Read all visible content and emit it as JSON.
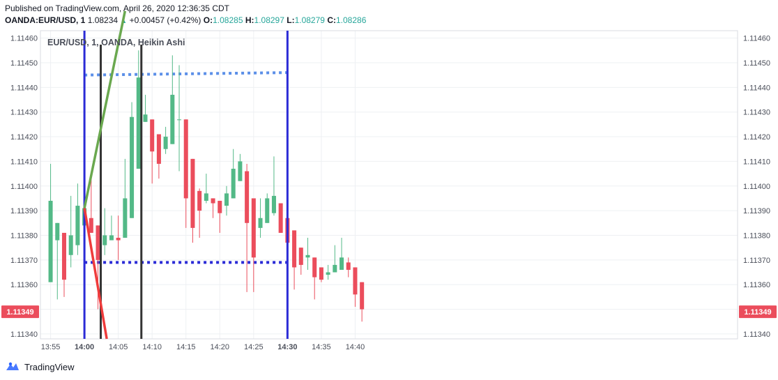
{
  "header": {
    "published": "Published on TradingView.com, April 26, 2020 12:36:35 CDT",
    "symbol": "OANDA:EUR/USD, 1",
    "last": "1.08234",
    "change": "+0.00457 (+0.42%)",
    "o_label": "O:",
    "o_value": "1.08285",
    "h_label": "H:",
    "h_value": "1.08297",
    "l_label": "L:",
    "l_value": "1.08279",
    "c_label": "C:",
    "c_value": "1.08286"
  },
  "chart_title": "EUR/USD, 1, OANDA, Heikin Ashi",
  "footer": {
    "brand": "TradingView",
    "logo_icon": "tradingview-logo-icon"
  },
  "colors": {
    "up": "#53b987",
    "down": "#eb4d5c",
    "grid": "#eef0f3",
    "vline": "#2b2bd6",
    "price_label": "#eb4d5c"
  },
  "chart_data": {
    "type": "candlestick",
    "style": "Heikin Ashi",
    "y_ticks": [
      "1.11340",
      "1.11350",
      "1.11360",
      "1.11370",
      "1.11380",
      "1.11390",
      "1.11400",
      "1.11410",
      "1.11420",
      "1.11430",
      "1.11440",
      "1.11450",
      "1.11460"
    ],
    "x_ticks": [
      "13:55",
      "14:00",
      "14:05",
      "14:10",
      "14:15",
      "14:20",
      "14:25",
      "14:30",
      "14:35",
      "14:40"
    ],
    "ylim": [
      1.11338,
      1.11463
    ],
    "x_range_minutes": [
      -1.5,
      101.5
    ],
    "current_price": "1.11349",
    "candles": [
      {
        "t": 0,
        "o": 1.11361,
        "c": 1.11394,
        "h": 1.11409,
        "l": 1.11361
      },
      {
        "t": 1,
        "o": 1.11378,
        "c": 1.11385,
        "h": 1.11385,
        "l": 1.11354
      },
      {
        "t": 2,
        "o": 1.11381,
        "c": 1.11362,
        "h": 1.11381,
        "l": 1.11355
      },
      {
        "t": 3,
        "o": 1.11372,
        "c": 1.1138,
        "h": 1.11396,
        "l": 1.11367
      },
      {
        "t": 4,
        "o": 1.11376,
        "c": 1.11392,
        "h": 1.11401,
        "l": 1.11372
      },
      {
        "t": 5,
        "o": 1.11384,
        "c": 1.11391,
        "h": 1.11415,
        "l": 1.11384
      },
      {
        "t": 6,
        "o": 1.11387,
        "c": 1.11381,
        "h": 1.11404,
        "l": 1.11381
      },
      {
        "t": 7,
        "o": 1.11384,
        "c": 1.1137,
        "h": 1.11384,
        "l": 1.1135
      },
      {
        "t": 8,
        "o": 1.11376,
        "c": 1.1138,
        "h": 1.11391,
        "l": 1.11372
      },
      {
        "t": 9,
        "o": 1.11378,
        "c": 1.1138,
        "h": 1.11388,
        "l": 1.11378
      },
      {
        "t": 10,
        "o": 1.11379,
        "c": 1.11378,
        "h": 1.11388,
        "l": 1.1137
      },
      {
        "t": 11,
        "o": 1.11379,
        "c": 1.11395,
        "h": 1.11411,
        "l": 1.11379
      },
      {
        "t": 12,
        "o": 1.11387,
        "c": 1.11428,
        "h": 1.11434,
        "l": 1.11387
      },
      {
        "t": 13,
        "o": 1.11407,
        "c": 1.11444,
        "h": 1.11455,
        "l": 1.11407
      },
      {
        "t": 14,
        "o": 1.11426,
        "c": 1.11429,
        "h": 1.11437,
        "l": 1.11426
      },
      {
        "t": 15,
        "o": 1.11427,
        "c": 1.11414,
        "h": 1.11427,
        "l": 1.11401
      },
      {
        "t": 16,
        "o": 1.11421,
        "c": 1.11409,
        "h": 1.11421,
        "l": 1.11403
      },
      {
        "t": 17,
        "o": 1.11415,
        "c": 1.1142,
        "h": 1.11424,
        "l": 1.11413
      },
      {
        "t": 18,
        "o": 1.11417,
        "c": 1.11437,
        "h": 1.11453,
        "l": 1.11417
      },
      {
        "t": 19,
        "o": 1.11427,
        "c": 1.11427,
        "h": 1.11449,
        "l": 1.11406
      },
      {
        "t": 20,
        "o": 1.11427,
        "c": 1.11395,
        "h": 1.11427,
        "l": 1.11383
      },
      {
        "t": 21,
        "o": 1.11411,
        "c": 1.11383,
        "h": 1.11411,
        "l": 1.11377
      },
      {
        "t": 22,
        "o": 1.11398,
        "c": 1.1139,
        "h": 1.11399,
        "l": 1.11379
      },
      {
        "t": 23,
        "o": 1.11394,
        "c": 1.11397,
        "h": 1.11405,
        "l": 1.11393
      },
      {
        "t": 24,
        "o": 1.11395,
        "c": 1.11393,
        "h": 1.11395,
        "l": 1.11387
      },
      {
        "t": 25,
        "o": 1.11394,
        "c": 1.11389,
        "h": 1.11394,
        "l": 1.11381
      },
      {
        "t": 26,
        "o": 1.11392,
        "c": 1.11397,
        "h": 1.114,
        "l": 1.11388
      },
      {
        "t": 27,
        "o": 1.11395,
        "c": 1.11407,
        "h": 1.11415,
        "l": 1.11395
      },
      {
        "t": 28,
        "o": 1.11402,
        "c": 1.1141,
        "h": 1.11413,
        "l": 1.11402
      },
      {
        "t": 29,
        "o": 1.11406,
        "c": 1.11385,
        "h": 1.11409,
        "l": 1.11357
      },
      {
        "t": 30,
        "o": 1.11395,
        "c": 1.11371,
        "h": 1.11395,
        "l": 1.11357
      },
      {
        "t": 31,
        "o": 1.11383,
        "c": 1.11387,
        "h": 1.11395,
        "l": 1.11379
      },
      {
        "t": 32,
        "o": 1.11385,
        "c": 1.11395,
        "h": 1.11397,
        "l": 1.11385
      },
      {
        "t": 33,
        "o": 1.11389,
        "c": 1.11396,
        "h": 1.11412,
        "l": 1.11388
      },
      {
        "t": 34,
        "o": 1.11393,
        "c": 1.11381,
        "h": 1.11393,
        "l": 1.11381
      },
      {
        "t": 35,
        "o": 1.11387,
        "c": 1.11377,
        "h": 1.11387,
        "l": 1.11372
      },
      {
        "t": 36,
        "o": 1.11382,
        "c": 1.11367,
        "h": 1.11382,
        "l": 1.11358
      },
      {
        "t": 37,
        "o": 1.11375,
        "c": 1.11368,
        "h": 1.11375,
        "l": 1.11364
      },
      {
        "t": 38,
        "o": 1.11371,
        "c": 1.11372,
        "h": 1.11379,
        "l": 1.11366
      },
      {
        "t": 39,
        "o": 1.11371,
        "c": 1.11363,
        "h": 1.11371,
        "l": 1.11354
      },
      {
        "t": 40,
        "o": 1.11367,
        "c": 1.11362,
        "h": 1.11367,
        "l": 1.11361
      },
      {
        "t": 41,
        "o": 1.11364,
        "c": 1.11365,
        "h": 1.11368,
        "l": 1.11362
      },
      {
        "t": 42,
        "o": 1.11365,
        "c": 1.11368,
        "h": 1.11376,
        "l": 1.11365
      },
      {
        "t": 43,
        "o": 1.11366,
        "c": 1.11371,
        "h": 1.11379,
        "l": 1.11366
      },
      {
        "t": 44,
        "o": 1.11369,
        "c": 1.11366,
        "h": 1.11371,
        "l": 1.11363
      },
      {
        "t": 45,
        "o": 1.11367,
        "c": 1.11356,
        "h": 1.11367,
        "l": 1.11351
      },
      {
        "t": 46,
        "o": 1.11361,
        "c": 1.1135,
        "h": 1.11361,
        "l": 1.11345
      }
    ],
    "drawings": {
      "vertical_lines_blue": [
        5,
        35
      ],
      "vertical_lines_black": [
        7,
        13
      ],
      "dotted_lines": [
        {
          "t1": 5,
          "p1": 1.11445,
          "t2": 35,
          "p2": 1.11446,
          "color": "#5b8fe8"
        },
        {
          "t1": 5,
          "p1": 1.11369,
          "t2": 35,
          "p2": 1.11369,
          "color": "#2b2bd6"
        }
      ],
      "trend_lines": [
        {
          "t1": 5,
          "p1": 1.11391,
          "t2": 11,
          "p2": 1.11471,
          "color": "#6aa84f"
        },
        {
          "t1": 5,
          "p1": 1.11391,
          "t2": 8.3,
          "p2": 1.11338,
          "color": "#ef3b3b"
        }
      ]
    }
  }
}
